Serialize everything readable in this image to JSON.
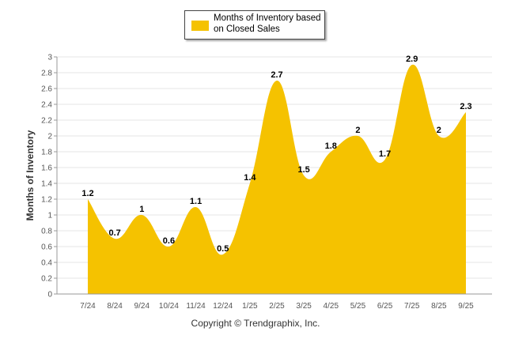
{
  "chart_data": {
    "type": "area",
    "title": "",
    "ylabel": "Months of Inventory",
    "xlabel": "",
    "ylim": [
      0,
      3
    ],
    "y_ticks": [
      "0",
      "0.2",
      "0.4",
      "0.6",
      "0.8",
      "1",
      "1.2",
      "1.4",
      "1.6",
      "1.8",
      "2",
      "2.2",
      "2.4",
      "2.6",
      "2.8",
      "3"
    ],
    "categories": [
      "7/24",
      "8/24",
      "9/24",
      "10/24",
      "11/24",
      "12/24",
      "1/25",
      "2/25",
      "3/25",
      "4/25",
      "5/25",
      "6/25",
      "7/25",
      "8/25",
      "9/25"
    ],
    "series": [
      {
        "name": "Months of Inventory based on Closed Sales",
        "values": [
          1.2,
          0.7,
          1,
          0.6,
          1.1,
          0.5,
          1.4,
          2.7,
          1.5,
          1.8,
          2,
          1.7,
          2.9,
          2,
          2.3
        ],
        "labels": [
          "1.2",
          "0.7",
          "1",
          "0.6",
          "1.1",
          "0.5",
          "1.4",
          "2.7",
          "1.5",
          "1.8",
          "2",
          "1.7",
          "2.9",
          "2",
          "2.3"
        ],
        "color": "#F5C200"
      }
    ],
    "grid": true,
    "legend": "top-center"
  },
  "legend": {
    "label": "Months of Inventory based on Closed Sales"
  },
  "footer": {
    "copyright": "Copyright © Trendgraphix, Inc."
  }
}
